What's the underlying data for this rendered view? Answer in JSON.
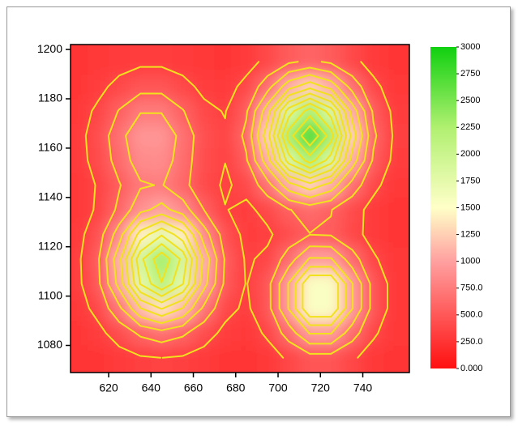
{
  "chart_data": {
    "type": "contour",
    "x": [
      605,
      615,
      625,
      635,
      645,
      655,
      665,
      675,
      685,
      695,
      705,
      715,
      725,
      735,
      745,
      755
    ],
    "y": [
      1075,
      1085,
      1095,
      1105,
      1115,
      1125,
      1135,
      1145,
      1155,
      1165,
      1175,
      1185,
      1195
    ],
    "z": [
      [
        253,
        264,
        291,
        331,
        351,
        331,
        291,
        264,
        259,
        288,
        372,
        473,
        473,
        372,
        288,
        256
      ],
      [
        262,
        307,
        422,
        586,
        670,
        586,
        422,
        309,
        283,
        374,
        640,
        961,
        961,
        640,
        372,
        271
      ],
      [
        282,
        400,
        706,
        1140,
        1363,
        1140,
        706,
        403,
        320,
        477,
        961,
        1547,
        1547,
        961,
        473,
        288
      ],
      [
        305,
        505,
        1025,
        1762,
        2140,
        1762,
        1025,
        508,
        343,
        481,
        961,
        1547,
        1547,
        961,
        473,
        288
      ],
      [
        310,
        528,
        1094,
        1896,
        2308,
        1896,
        1094,
        530,
        331,
        380,
        648,
        971,
        969,
        640,
        372,
        271
      ],
      [
        294,
        453,
        861,
        1436,
        1726,
        1426,
        851,
        450,
        308,
        324,
        430,
        546,
        531,
        402,
        298,
        258
      ],
      [
        277,
        370,
        594,
        891,
        1021,
        848,
        550,
        356,
        316,
        397,
        540,
        625,
        557,
        408,
        302,
        260
      ],
      [
        278,
        361,
        536,
        726,
        763,
        609,
        417,
        328,
        397,
        671,
        1070,
        1275,
        1070,
        670,
        388,
        280
      ],
      [
        291,
        407,
        635,
        856,
        863,
        648,
        424,
        353,
        528,
        1070,
        1850,
        2250,
        1850,
        1070,
        520,
        308
      ],
      [
        296,
        425,
        677,
        915,
        915,
        677,
        435,
        369,
        596,
        1275,
        2250,
        2750,
        2250,
        1275,
        588,
        323
      ],
      [
        284,
        378,
        562,
        735,
        735,
        562,
        386,
        342,
        526,
        1070,
        1850,
        2250,
        1850,
        1070,
        520,
        308
      ],
      [
        266,
        310,
        395,
        476,
        476,
        395,
        314,
        296,
        391,
        670,
        1070,
        1275,
        1070,
        670,
        388,
        280
      ],
      [
        255,
        268,
        293,
        317,
        317,
        293,
        269,
        265,
        297,
        388,
        520,
        588,
        520,
        388,
        296,
        260
      ]
    ],
    "xlim": [
      602,
      762
    ],
    "ylim": [
      1069,
      1202
    ],
    "xticks": [
      620,
      640,
      660,
      680,
      700,
      720,
      740
    ],
    "yticks": [
      1080,
      1100,
      1120,
      1140,
      1160,
      1180,
      1200
    ],
    "zlim": [
      0,
      3000
    ],
    "zticks": [
      {
        "value": 0,
        "label": "0.000"
      },
      {
        "value": 250,
        "label": "250.0"
      },
      {
        "value": 500,
        "label": "500.0"
      },
      {
        "value": 750,
        "label": "750.0"
      },
      1000,
      1250,
      1500,
      1750,
      2000,
      2250,
      2500,
      2750,
      3000
    ],
    "colormap": [
      {
        "value": 0,
        "color": "#ff1010"
      },
      {
        "value": 1000,
        "color": "#ffa0a0"
      },
      {
        "value": 1500,
        "color": "#ffffc8"
      },
      {
        "value": 2250,
        "color": "#b0f070"
      },
      {
        "value": 3000,
        "color": "#10d010"
      }
    ],
    "contour_levels": [
      350,
      550,
      750,
      950,
      1150,
      1350,
      1550,
      1750,
      1950,
      2150,
      2350,
      2550
    ],
    "contour_color": "#f2e21e"
  }
}
